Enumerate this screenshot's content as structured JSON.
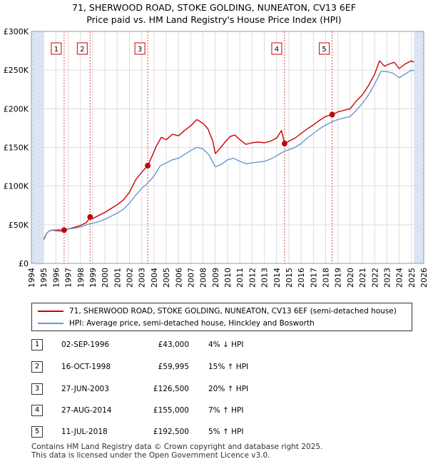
{
  "title_line1": "71, SHERWOOD ROAD, STOKE GOLDING, NUNEATON, CV13 6EF",
  "title_line2": "Price paid vs. HM Land Registry's House Price Index (HPI)",
  "colors": {
    "property": "#cc0000",
    "hpi": "#6699cc",
    "shade": "#dde6f4",
    "grid": "#dddddd"
  },
  "chart_data": {
    "type": "line",
    "xlim": [
      1994,
      2026
    ],
    "ylim": [
      0,
      300000
    ],
    "y_ticks": [
      0,
      50000,
      100000,
      150000,
      200000,
      250000,
      300000
    ],
    "y_tick_labels": [
      "£0",
      "£50K",
      "£100K",
      "£150K",
      "£200K",
      "£250K",
      "£300K"
    ],
    "x_ticks": [
      1994,
      1995,
      1996,
      1997,
      1998,
      1999,
      2000,
      2001,
      2002,
      2003,
      2004,
      2005,
      2006,
      2007,
      2008,
      2009,
      2010,
      2011,
      2012,
      2013,
      2014,
      2015,
      2016,
      2017,
      2018,
      2019,
      2020,
      2021,
      2022,
      2023,
      2024,
      2025,
      2026
    ],
    "x_tick_labels": [
      "1994",
      "1995",
      "1996",
      "1997",
      "1998",
      "1999",
      "2000",
      "2001",
      "2002",
      "2003",
      "2004",
      "2005",
      "2006",
      "2007",
      "2008",
      "2009",
      "2010",
      "2011",
      "2012",
      "2013",
      "2014",
      "2015",
      "2016",
      "2017",
      "2018",
      "2019",
      "2020",
      "2021",
      "2022",
      "2023",
      "2024",
      "2025",
      "2026"
    ],
    "data_range": [
      1995.0,
      2025.2
    ],
    "series": [
      {
        "name": "71, SHERWOOD ROAD, STOKE GOLDING, NUNEATON, CV13 6EF (semi-detached house)",
        "color": "#cc0000",
        "points": [
          [
            1995.0,
            31000
          ],
          [
            1995.3,
            40000
          ],
          [
            1995.6,
            43000
          ],
          [
            1996.0,
            42500
          ],
          [
            1996.4,
            42000
          ],
          [
            1996.67,
            43000
          ],
          [
            1997.0,
            44500
          ],
          [
            1997.5,
            46500
          ],
          [
            1998.0,
            49000
          ],
          [
            1998.5,
            53000
          ],
          [
            1998.79,
            59995
          ],
          [
            1999.0,
            58000
          ],
          [
            1999.5,
            62000
          ],
          [
            2000.0,
            66000
          ],
          [
            2000.5,
            71000
          ],
          [
            2001.0,
            76000
          ],
          [
            2001.5,
            82000
          ],
          [
            2002.0,
            92000
          ],
          [
            2002.5,
            108000
          ],
          [
            2003.0,
            118000
          ],
          [
            2003.49,
            126500
          ],
          [
            2003.8,
            137000
          ],
          [
            2004.2,
            152000
          ],
          [
            2004.6,
            163000
          ],
          [
            2005.0,
            160000
          ],
          [
            2005.5,
            167000
          ],
          [
            2006.0,
            165000
          ],
          [
            2006.5,
            172000
          ],
          [
            2007.0,
            178000
          ],
          [
            2007.5,
            186000
          ],
          [
            2008.0,
            181000
          ],
          [
            2008.4,
            174000
          ],
          [
            2008.8,
            158000
          ],
          [
            2009.0,
            142000
          ],
          [
            2009.4,
            149000
          ],
          [
            2009.8,
            157000
          ],
          [
            2010.2,
            164000
          ],
          [
            2010.6,
            166000
          ],
          [
            2011.0,
            160000
          ],
          [
            2011.5,
            154000
          ],
          [
            2012.0,
            156000
          ],
          [
            2012.5,
            157000
          ],
          [
            2013.0,
            156000
          ],
          [
            2013.5,
            158000
          ],
          [
            2014.0,
            162000
          ],
          [
            2014.4,
            172000
          ],
          [
            2014.65,
            155000
          ],
          [
            2015.0,
            158000
          ],
          [
            2015.5,
            162000
          ],
          [
            2016.0,
            168000
          ],
          [
            2016.5,
            174000
          ],
          [
            2017.0,
            179000
          ],
          [
            2017.5,
            185000
          ],
          [
            2018.0,
            190000
          ],
          [
            2018.53,
            192500
          ],
          [
            2019.0,
            196000
          ],
          [
            2019.5,
            198000
          ],
          [
            2020.0,
            200000
          ],
          [
            2020.5,
            210000
          ],
          [
            2021.0,
            218000
          ],
          [
            2021.5,
            230000
          ],
          [
            2022.0,
            245000
          ],
          [
            2022.4,
            262000
          ],
          [
            2022.8,
            255000
          ],
          [
            2023.2,
            258000
          ],
          [
            2023.6,
            260000
          ],
          [
            2024.0,
            252000
          ],
          [
            2024.5,
            258000
          ],
          [
            2025.0,
            262000
          ],
          [
            2025.2,
            260000
          ]
        ]
      },
      {
        "name": "HPI: Average price, semi-detached house, Hinckley and Bosworth",
        "color": "#6699cc",
        "points": [
          [
            1995.0,
            32000
          ],
          [
            1995.3,
            40000
          ],
          [
            1995.6,
            43000
          ],
          [
            1996.0,
            43500
          ],
          [
            1996.5,
            44000
          ],
          [
            1997.0,
            44500
          ],
          [
            1997.5,
            45500
          ],
          [
            1998.0,
            47000
          ],
          [
            1998.5,
            50000
          ],
          [
            1999.0,
            52000
          ],
          [
            1999.5,
            54000
          ],
          [
            2000.0,
            57000
          ],
          [
            2000.5,
            61000
          ],
          [
            2001.0,
            65000
          ],
          [
            2001.5,
            70000
          ],
          [
            2002.0,
            78000
          ],
          [
            2002.5,
            88000
          ],
          [
            2003.0,
            97000
          ],
          [
            2003.5,
            104000
          ],
          [
            2004.0,
            113000
          ],
          [
            2004.5,
            126000
          ],
          [
            2005.0,
            130000
          ],
          [
            2005.5,
            134000
          ],
          [
            2006.0,
            136000
          ],
          [
            2006.5,
            141000
          ],
          [
            2007.0,
            146000
          ],
          [
            2007.5,
            150000
          ],
          [
            2008.0,
            148000
          ],
          [
            2008.5,
            140000
          ],
          [
            2009.0,
            125000
          ],
          [
            2009.5,
            128000
          ],
          [
            2010.0,
            134000
          ],
          [
            2010.5,
            136000
          ],
          [
            2011.0,
            132000
          ],
          [
            2011.5,
            129000
          ],
          [
            2012.0,
            130000
          ],
          [
            2012.5,
            131000
          ],
          [
            2013.0,
            132000
          ],
          [
            2013.5,
            135000
          ],
          [
            2014.0,
            139000
          ],
          [
            2014.5,
            144000
          ],
          [
            2015.0,
            147000
          ],
          [
            2015.5,
            150000
          ],
          [
            2016.0,
            155000
          ],
          [
            2016.5,
            162000
          ],
          [
            2017.0,
            168000
          ],
          [
            2017.5,
            174000
          ],
          [
            2018.0,
            179000
          ],
          [
            2018.5,
            183000
          ],
          [
            2019.0,
            186000
          ],
          [
            2019.5,
            188000
          ],
          [
            2020.0,
            190000
          ],
          [
            2020.5,
            198000
          ],
          [
            2021.0,
            207000
          ],
          [
            2021.5,
            218000
          ],
          [
            2022.0,
            232000
          ],
          [
            2022.5,
            248000
          ],
          [
            2023.0,
            248000
          ],
          [
            2023.5,
            246000
          ],
          [
            2024.0,
            240000
          ],
          [
            2024.5,
            245000
          ],
          [
            2025.0,
            250000
          ],
          [
            2025.2,
            249000
          ]
        ]
      }
    ],
    "sales": [
      {
        "label": "1",
        "x": 1996.67,
        "price": 43000
      },
      {
        "label": "2",
        "x": 1998.79,
        "price": 59995
      },
      {
        "label": "3",
        "x": 2003.49,
        "price": 126500
      },
      {
        "label": "4",
        "x": 2014.65,
        "price": 155000
      },
      {
        "label": "5",
        "x": 2018.53,
        "price": 192500
      }
    ]
  },
  "legend": {
    "property": "71, SHERWOOD ROAD, STOKE GOLDING, NUNEATON, CV13 6EF (semi-detached house)",
    "hpi": "HPI: Average price, semi-detached house, Hinckley and Bosworth"
  },
  "table": [
    {
      "num": "1",
      "date": "02-SEP-1996",
      "price": "£43,000",
      "hpi": "4% ↓ HPI"
    },
    {
      "num": "2",
      "date": "16-OCT-1998",
      "price": "£59,995",
      "hpi": "15% ↑ HPI"
    },
    {
      "num": "3",
      "date": "27-JUN-2003",
      "price": "£126,500",
      "hpi": "20% ↑ HPI"
    },
    {
      "num": "4",
      "date": "27-AUG-2014",
      "price": "£155,000",
      "hpi": "7% ↑ HPI"
    },
    {
      "num": "5",
      "date": "11-JUL-2018",
      "price": "£192,500",
      "hpi": "5% ↑ HPI"
    }
  ],
  "footer_line1": "Contains HM Land Registry data © Crown copyright and database right 2025.",
  "footer_line2": "This data is licensed under the Open Government Licence v3.0."
}
